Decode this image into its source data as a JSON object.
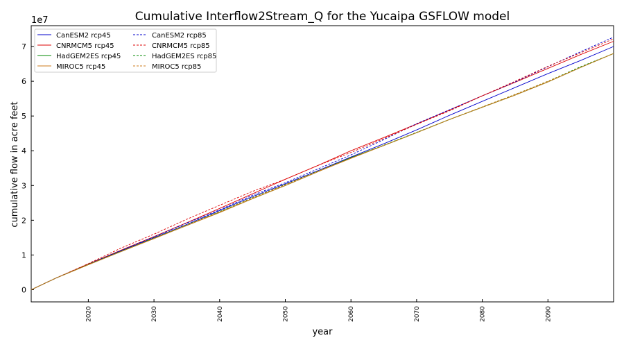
{
  "chart_data": {
    "type": "line",
    "title": "Cumulative Interflow2Stream_Q for the Yucaipa GSFLOW model",
    "xlabel": "year",
    "ylabel": "cumulative flow in acre feet",
    "y_multiplier": "1e7",
    "xlim": [
      2011.3,
      2100
    ],
    "ylim": [
      -0.35,
      7.6
    ],
    "x_ticks": [
      2020,
      2030,
      2040,
      2050,
      2060,
      2070,
      2080,
      2090
    ],
    "y_ticks": [
      0,
      1,
      2,
      3,
      4,
      5,
      6,
      7
    ],
    "x_tick_labels": [
      "2020",
      "2030",
      "2040",
      "2050",
      "2060",
      "2070",
      "2080",
      "2090"
    ],
    "y_tick_labels": [
      "0",
      "1",
      "2",
      "3",
      "4",
      "5",
      "6",
      "7"
    ],
    "grid": false,
    "legend_position": "top-left",
    "x": [
      2011.3,
      2015,
      2020,
      2025,
      2030,
      2035,
      2040,
      2045,
      2050,
      2055,
      2060,
      2065,
      2070,
      2075,
      2080,
      2085,
      2090,
      2095,
      2100
    ],
    "series": [
      {
        "name": "CanESM2 rcp45",
        "color": "#0000cc",
        "dash": "solid",
        "values": [
          0,
          0.33,
          0.73,
          1.12,
          1.5,
          1.88,
          2.28,
          2.68,
          3.05,
          3.43,
          3.82,
          4.2,
          4.6,
          5.02,
          5.42,
          5.82,
          6.22,
          6.6,
          7.0
        ]
      },
      {
        "name": "CNRMCM5 rcp45",
        "color": "#dd0000",
        "dash": "solid",
        "values": [
          0,
          0.33,
          0.74,
          1.14,
          1.53,
          1.93,
          2.34,
          2.76,
          3.18,
          3.58,
          4.0,
          4.38,
          4.77,
          5.17,
          5.58,
          5.97,
          6.37,
          6.77,
          7.15
        ]
      },
      {
        "name": "HadGEM2ES rcp45",
        "color": "#008800",
        "dash": "solid",
        "values": [
          0,
          0.33,
          0.72,
          1.1,
          1.48,
          1.85,
          2.23,
          2.62,
          3.0,
          3.4,
          3.8,
          4.15,
          4.52,
          4.9,
          5.25,
          5.6,
          5.98,
          6.4,
          6.8
        ]
      },
      {
        "name": "MIROC5 rcp45",
        "color": "#cc7a1a",
        "dash": "solid",
        "values": [
          0,
          0.33,
          0.72,
          1.1,
          1.47,
          1.85,
          2.22,
          2.62,
          3.0,
          3.4,
          3.78,
          4.15,
          4.52,
          4.9,
          5.25,
          5.6,
          5.98,
          6.4,
          6.8
        ]
      },
      {
        "name": "CanESM2 rcp85",
        "color": "#0000cc",
        "dash": "dashed",
        "values": [
          0,
          0.33,
          0.74,
          1.13,
          1.52,
          1.92,
          2.3,
          2.72,
          3.08,
          3.48,
          3.88,
          4.32,
          4.78,
          5.18,
          5.58,
          5.98,
          6.42,
          6.85,
          7.27
        ]
      },
      {
        "name": "CNRMCM5 rcp85",
        "color": "#dd0000",
        "dash": "dashed",
        "values": [
          0,
          0.33,
          0.75,
          1.2,
          1.6,
          2.03,
          2.43,
          2.83,
          3.18,
          3.58,
          3.95,
          4.35,
          4.76,
          5.15,
          5.58,
          6.0,
          6.43,
          6.82,
          7.22
        ]
      },
      {
        "name": "HadGEM2ES rcp85",
        "color": "#008800",
        "dash": "dashed",
        "values": [
          0,
          0.33,
          0.73,
          1.11,
          1.49,
          1.87,
          2.25,
          2.65,
          3.03,
          3.42,
          3.8,
          4.16,
          4.53,
          4.9,
          5.26,
          5.62,
          6.0,
          6.42,
          6.8
        ]
      },
      {
        "name": "MIROC5 rcp85",
        "color": "#cc7a1a",
        "dash": "dashed",
        "values": [
          0,
          0.33,
          0.72,
          1.1,
          1.48,
          1.86,
          2.24,
          2.64,
          3.02,
          3.41,
          3.79,
          4.15,
          4.52,
          4.9,
          5.26,
          5.62,
          6.0,
          6.4,
          6.8
        ]
      }
    ]
  }
}
